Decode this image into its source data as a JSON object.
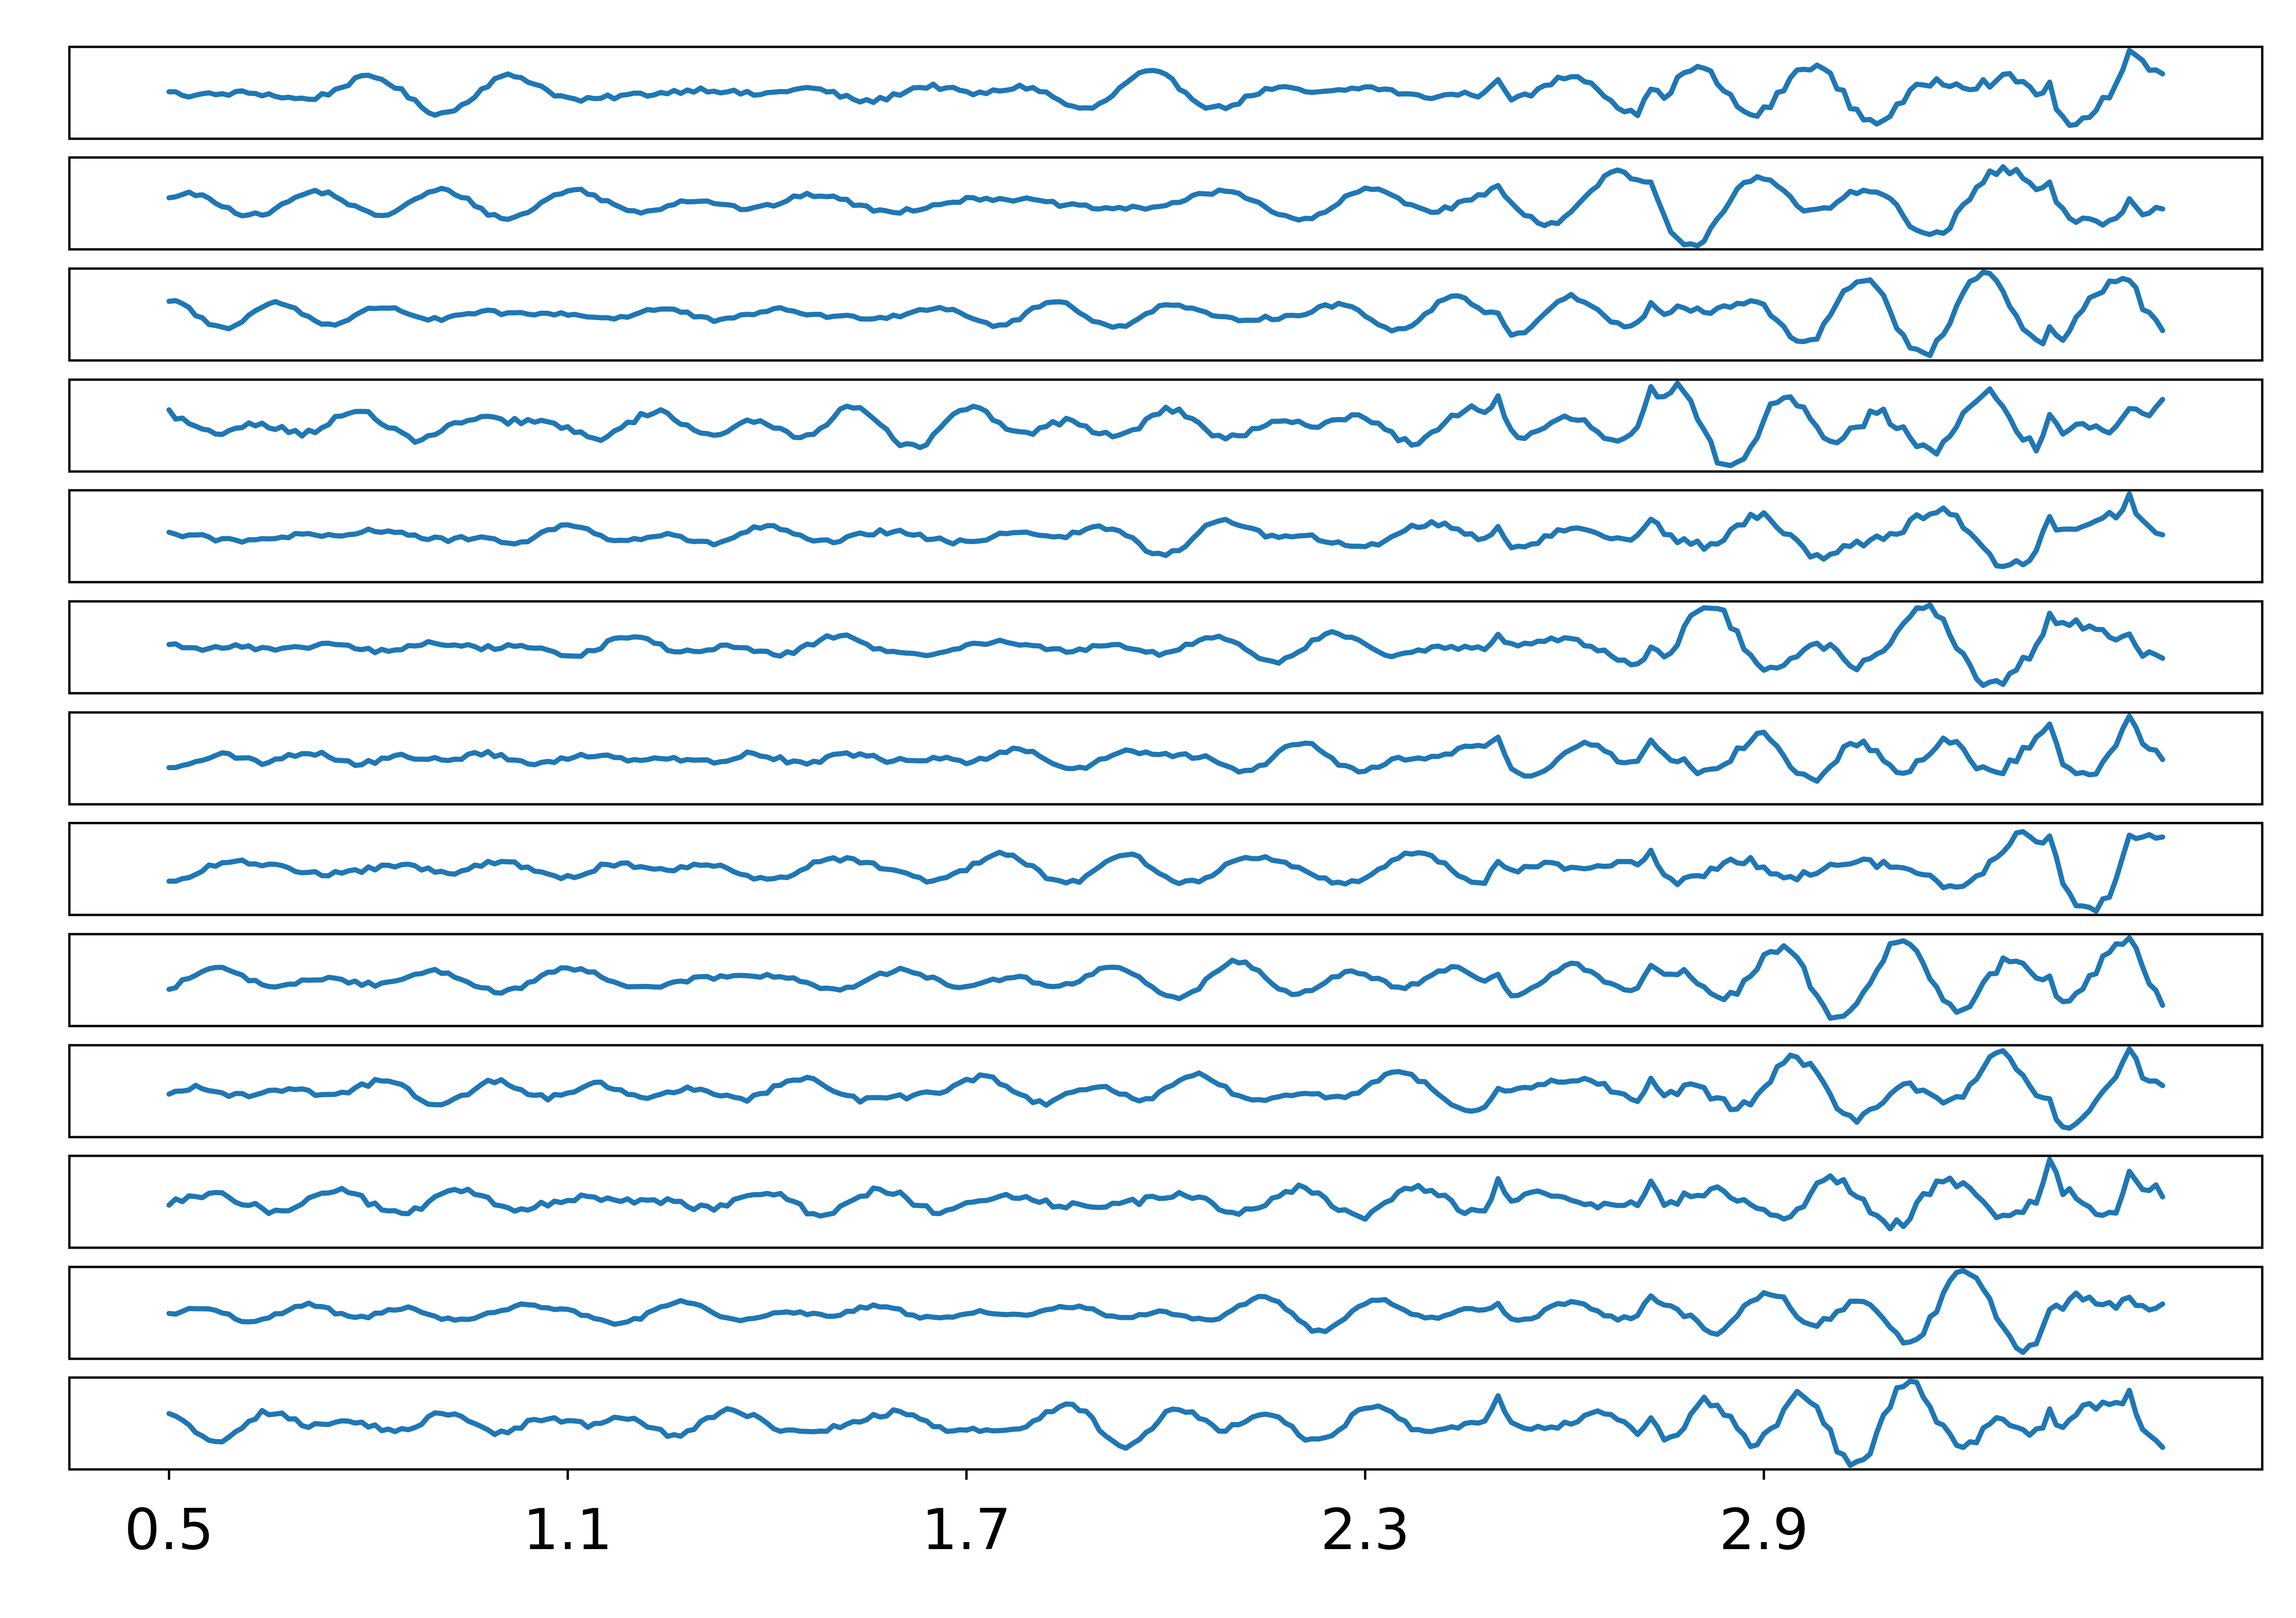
{
  "chart_data": {
    "type": "line",
    "title": "",
    "xlabel": "",
    "ylabel": "",
    "xlim": [
      0.35,
      3.65
    ],
    "x_ticks": [
      "0.5",
      "1.1",
      "1.7",
      "2.3",
      "2.9"
    ],
    "x_tick_values": [
      0.5,
      1.1,
      1.7,
      2.3,
      2.9
    ],
    "y_ticks_visible": false,
    "grid": false,
    "legend": "none",
    "x_start": 0.5,
    "x_end": 3.5,
    "n_points": 301,
    "panel_count": 13,
    "line_color": "#1f77b4",
    "series_count": 13,
    "series_note": "13 stacked panels of oscillatory signals with amplitude growing toward the right; values are approximate (normalized, y in [-1, 1])"
  }
}
